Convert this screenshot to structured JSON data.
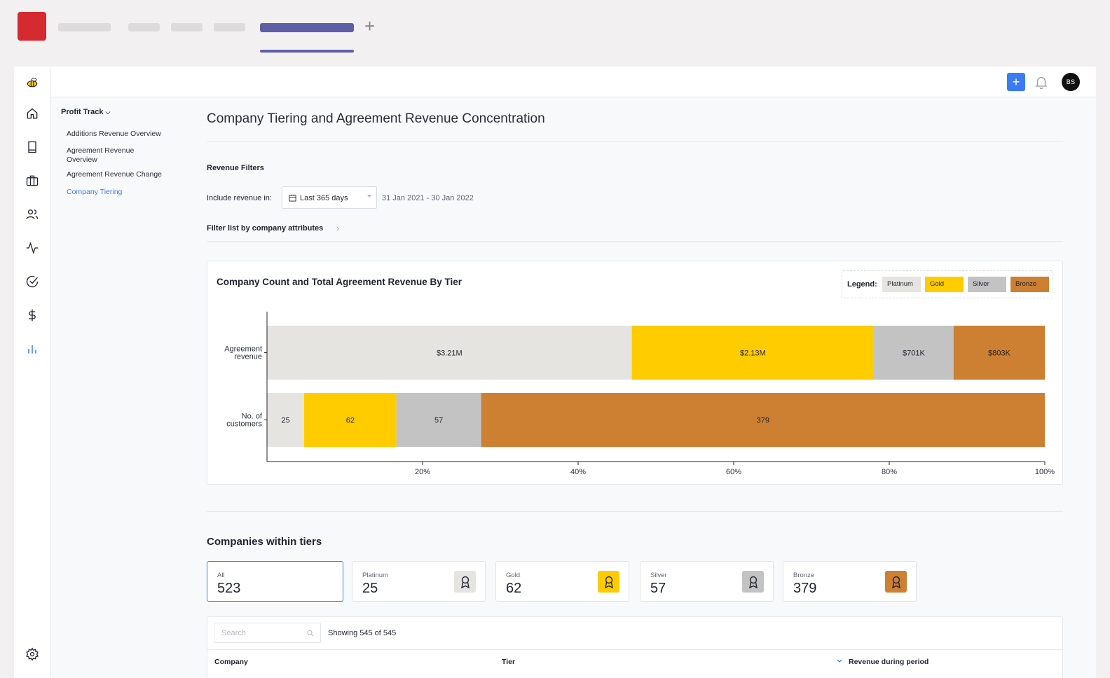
{
  "page": {
    "title": "Company Tiering and Agreement Revenue Concentration"
  },
  "header": {
    "add_label": "+",
    "avatar_initials": "BS"
  },
  "subnav": {
    "title": "Profit Track",
    "items": [
      {
        "label": "Additions Revenue Overview"
      },
      {
        "label": "Agreement Revenue Overview"
      },
      {
        "label": "Agreement Revenue Change"
      },
      {
        "label": "Company Tiering"
      }
    ]
  },
  "filters": {
    "heading": "Revenue Filters",
    "include_label": "Include revenue in:",
    "period_value": "Last 365 days",
    "date_range": "31 Jan 2021 - 30 Jan 2022",
    "attributes_label": "Filter list by company attributes"
  },
  "legend": {
    "label": "Legend:",
    "items": [
      {
        "name": "Platinum",
        "color": "#e5e4e0"
      },
      {
        "name": "Gold",
        "color": "#ffcc00"
      },
      {
        "name": "Silver",
        "color": "#c3c3c3"
      },
      {
        "name": "Bronze",
        "color": "#cd7f32"
      }
    ]
  },
  "chart_data": {
    "type": "bar",
    "orientation": "horizontal",
    "stacked": "percent",
    "title": "Company Count and Total Agreement Revenue By Tier",
    "categories": [
      "Agreement\nrevenue",
      "No. of\ncustomers"
    ],
    "series": [
      {
        "name": "Platinum",
        "color": "#e5e4e0",
        "values": [
          3210000,
          25
        ],
        "labels": [
          "$3.21M",
          "25"
        ]
      },
      {
        "name": "Gold",
        "color": "#ffcc00",
        "values": [
          2130000,
          62
        ],
        "labels": [
          "$2.13M",
          "62"
        ]
      },
      {
        "name": "Silver",
        "color": "#c3c3c3",
        "values": [
          701000,
          57
        ],
        "labels": [
          "$701K",
          "57"
        ]
      },
      {
        "name": "Bronze",
        "color": "#cd7f32",
        "values": [
          803000,
          379
        ],
        "labels": [
          "$803K",
          "379"
        ]
      }
    ],
    "x_ticks": [
      "20%",
      "40%",
      "60%",
      "80%",
      "100%"
    ],
    "xlim": [
      0,
      100
    ],
    "legend_position": "top-right",
    "grid": false
  },
  "tiers": {
    "title": "Companies within tiers",
    "cards": [
      {
        "label": "All",
        "value": "523"
      },
      {
        "label": "Platinum",
        "value": "25",
        "color": "#e5e4e0"
      },
      {
        "label": "Gold",
        "value": "62",
        "color": "#ffcc00"
      },
      {
        "label": "Silver",
        "value": "57",
        "color": "#c3c3c3"
      },
      {
        "label": "Bronze",
        "value": "379",
        "color": "#cd7f32"
      }
    ]
  },
  "table": {
    "search_placeholder": "Search",
    "showing": "Showing 545 of 545",
    "columns": [
      "Company",
      "Tier",
      "Revenue during period"
    ]
  }
}
